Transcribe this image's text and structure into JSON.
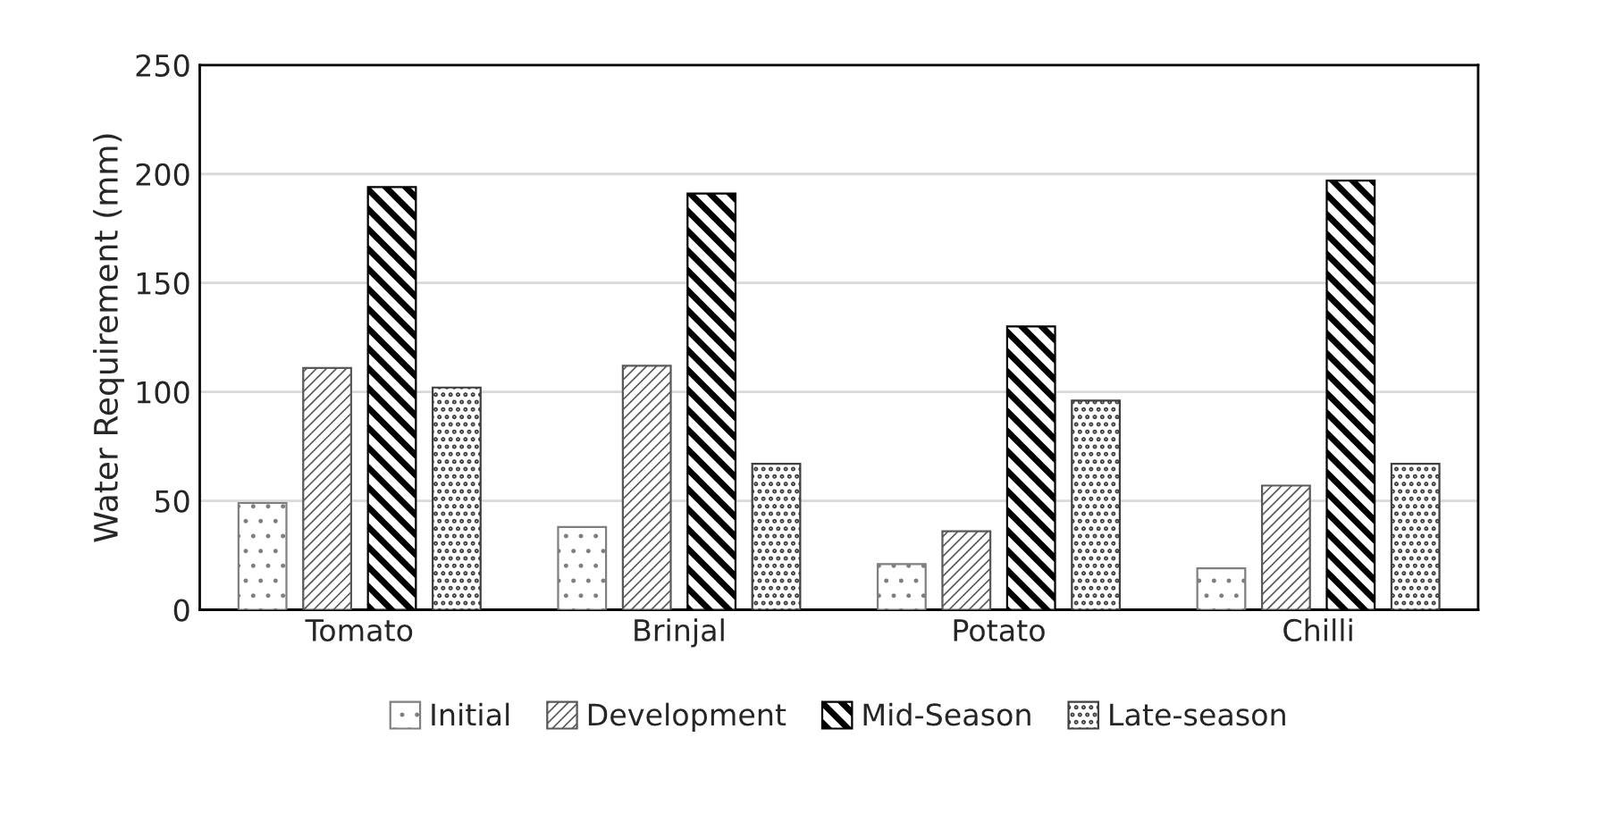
{
  "chart_data": {
    "type": "bar",
    "ylabel": "Water Requirement (mm)",
    "categories": [
      "Tomato",
      "Brinjal",
      "Potato",
      "Chilli"
    ],
    "series": [
      {
        "name": "Initial",
        "color": "#7f7f7f",
        "values": [
          49,
          38,
          21,
          19
        ]
      },
      {
        "name": "Development",
        "color": "#595959",
        "values": [
          111,
          112,
          36,
          57
        ]
      },
      {
        "name": "Mid-Season",
        "color": "#000000",
        "values": [
          194,
          191,
          130,
          197
        ]
      },
      {
        "name": "Late-season",
        "color": "#404040",
        "values": [
          102,
          67,
          96,
          67
        ]
      }
    ],
    "ylim": [
      0,
      250
    ],
    "yticks": [
      0,
      50,
      100,
      150,
      200,
      250
    ],
    "grid": "y",
    "legend": "bottom"
  }
}
